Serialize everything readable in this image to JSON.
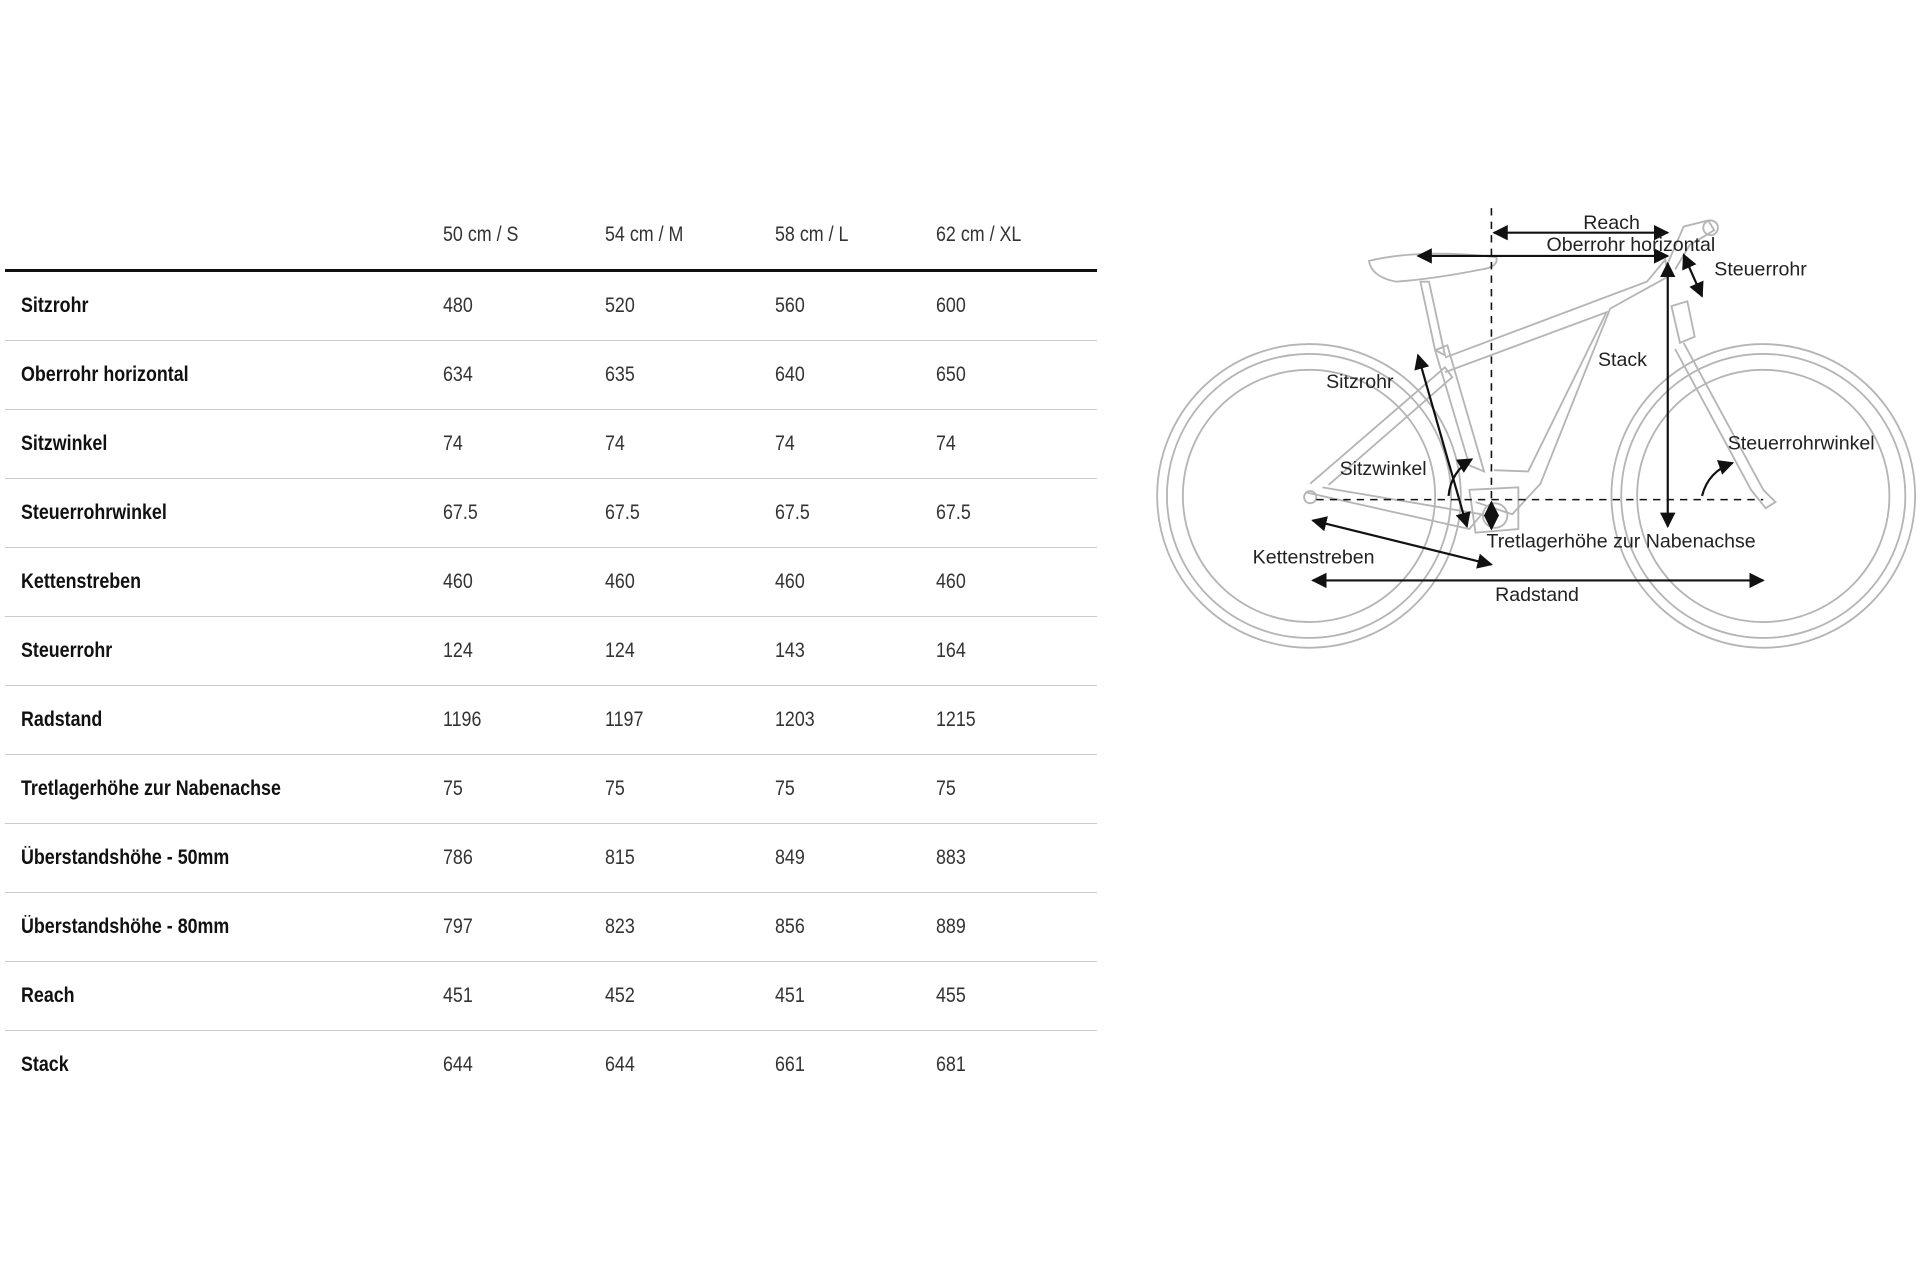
{
  "table": {
    "columns": [
      "",
      "50 cm / S",
      "54 cm / M",
      "58 cm / L",
      "62 cm / XL"
    ],
    "rows": [
      {
        "label": "Sitzrohr",
        "values": [
          "480",
          "520",
          "560",
          "600"
        ]
      },
      {
        "label": "Oberrohr horizontal",
        "values": [
          "634",
          "635",
          "640",
          "650"
        ]
      },
      {
        "label": "Sitzwinkel",
        "values": [
          "74",
          "74",
          "74",
          "74"
        ]
      },
      {
        "label": "Steuerrohrwinkel",
        "values": [
          "67.5",
          "67.5",
          "67.5",
          "67.5"
        ]
      },
      {
        "label": "Kettenstreben",
        "values": [
          "460",
          "460",
          "460",
          "460"
        ]
      },
      {
        "label": "Steuerrohr",
        "values": [
          "124",
          "124",
          "143",
          "164"
        ]
      },
      {
        "label": "Radstand",
        "values": [
          "1196",
          "1197",
          "1203",
          "1215"
        ]
      },
      {
        "label": "Tretlagerhöhe zur Nabenachse",
        "values": [
          "75",
          "75",
          "75",
          "75"
        ]
      },
      {
        "label": "Überstandshöhe - 50mm",
        "values": [
          "786",
          "815",
          "849",
          "883"
        ]
      },
      {
        "label": "Überstandshöhe - 80mm",
        "values": [
          "797",
          "823",
          "856",
          "889"
        ]
      },
      {
        "label": "Reach",
        "values": [
          "451",
          "452",
          "451",
          "455"
        ]
      },
      {
        "label": "Stack",
        "values": [
          "644",
          "644",
          "661",
          "681"
        ]
      }
    ]
  },
  "diagram": {
    "labels": {
      "reach": "Reach",
      "oberrohr": "Oberrohr horizontal",
      "steuerrohr": "Steuerrohr",
      "stack": "Stack",
      "sitzrohr": "Sitzrohr",
      "steuerrohrwinkel": "Steuerrohrwinkel",
      "sitzwinkel": "Sitzwinkel",
      "tretlager": "Tretlagerhöhe zur Nabenachse",
      "kettenstreben": "Kettenstreben",
      "radstand": "Radstand"
    },
    "frame_color": "#b5b5b5",
    "arrow_color": "#111111"
  }
}
